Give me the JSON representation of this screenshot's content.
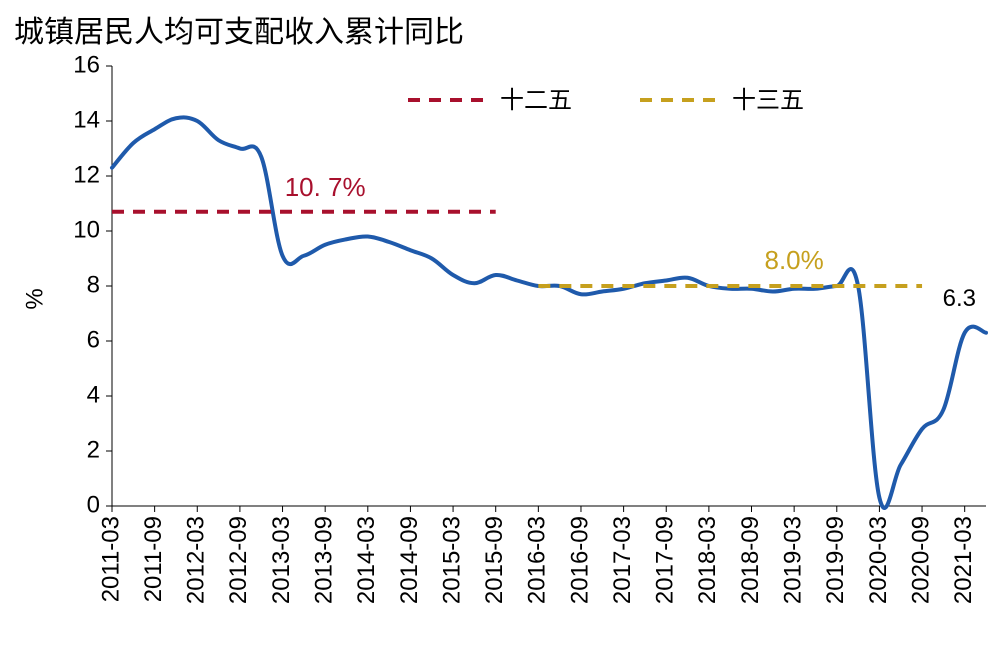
{
  "chart_data": {
    "type": "line",
    "title": "城镇居民人均可支配收入累计同比",
    "xlabel": "",
    "ylabel": "%",
    "x_tick_labels": [
      "2011-03",
      "2011-09",
      "2012-03",
      "2012-09",
      "2013-03",
      "2013-09",
      "2014-03",
      "2014-09",
      "2015-03",
      "2015-09",
      "2016-03",
      "2016-09",
      "2017-03",
      "2017-09",
      "2018-03",
      "2018-09",
      "2019-03",
      "2019-09",
      "2020-03",
      "2020-09",
      "2021-03"
    ],
    "ylim": [
      0,
      16
    ],
    "y_ticks": [
      0,
      2,
      4,
      6,
      8,
      10,
      12,
      14,
      16
    ],
    "grid": false,
    "legend_position": "top-center",
    "series": [
      {
        "color": "#1F5AAB",
        "x": [
          "2011-03",
          "2011-06",
          "2011-09",
          "2011-12",
          "2012-03",
          "2012-06",
          "2012-09",
          "2012-12",
          "2013-03",
          "2013-06",
          "2013-09",
          "2013-12",
          "2014-03",
          "2014-06",
          "2014-09",
          "2014-12",
          "2015-03",
          "2015-06",
          "2015-09",
          "2015-12",
          "2016-03",
          "2016-06",
          "2016-09",
          "2016-12",
          "2017-03",
          "2017-06",
          "2017-09",
          "2017-12",
          "2018-03",
          "2018-06",
          "2018-09",
          "2018-12",
          "2019-03",
          "2019-06",
          "2019-09",
          "2019-12",
          "2020-03",
          "2020-06",
          "2020-09",
          "2020-12",
          "2021-03",
          "2021-06"
        ],
        "values": [
          12.3,
          13.2,
          13.7,
          14.1,
          14.0,
          13.3,
          13.0,
          12.7,
          9.1,
          9.1,
          9.5,
          9.7,
          9.8,
          9.6,
          9.3,
          9.0,
          8.4,
          8.1,
          8.4,
          8.2,
          8.0,
          8.0,
          7.7,
          7.8,
          7.9,
          8.1,
          8.2,
          8.3,
          8.0,
          7.9,
          7.9,
          7.8,
          7.9,
          7.9,
          8.0,
          8.0,
          0.3,
          1.5,
          2.8,
          3.5,
          6.3,
          6.3
        ]
      },
      {
        "name": "十二五",
        "color": "#A8102D",
        "dashed": true,
        "x": [
          "2011-03",
          "2015-09"
        ],
        "values": [
          10.7,
          10.7
        ]
      },
      {
        "name": "十三五",
        "color": "#C6A01E",
        "dashed": true,
        "x": [
          "2016-03",
          "2020-09"
        ],
        "values": [
          8.0,
          8.0
        ]
      }
    ],
    "annotations": [
      {
        "text": "10. 7%",
        "series": "十二五",
        "color": "#A8102D"
      },
      {
        "text": "8.0%",
        "series": "十三五",
        "color": "#C6A01E"
      },
      {
        "text": "6.3",
        "series": "main",
        "color": "#000000"
      }
    ]
  }
}
